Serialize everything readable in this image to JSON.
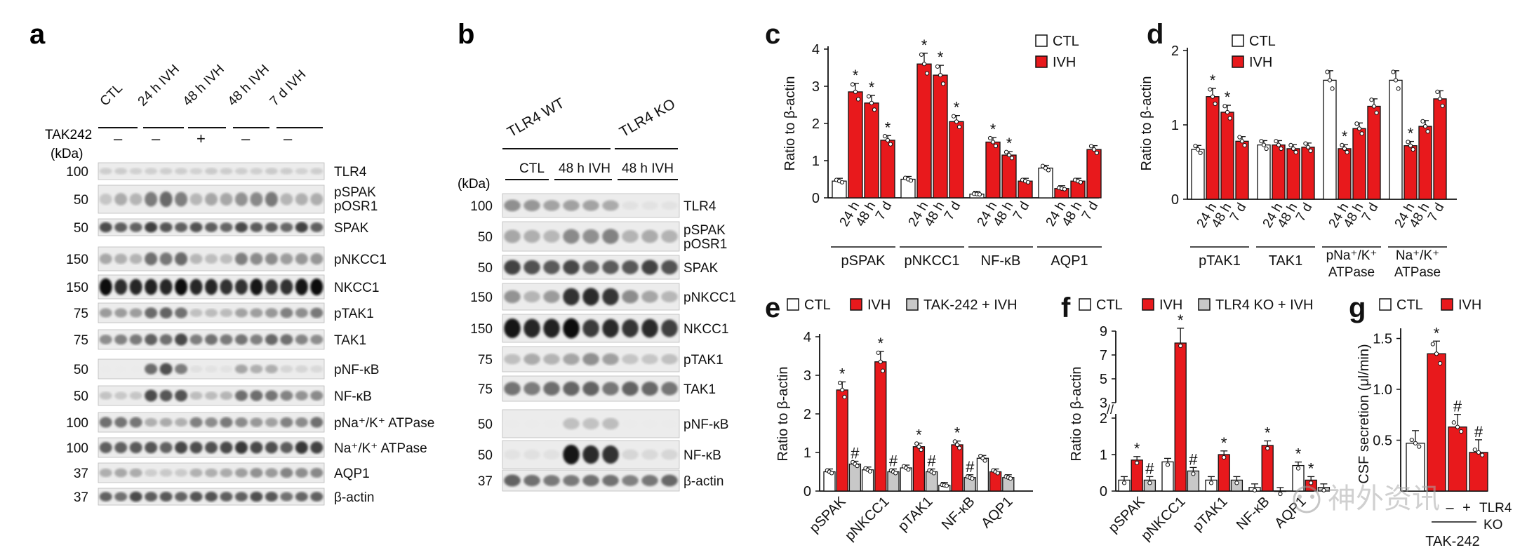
{
  "panels": {
    "a": {
      "letter": "a",
      "columns": [
        "CTL",
        "24 h IVH",
        "48 h IVH",
        "48 h IVH",
        "7 d IVH"
      ],
      "treatment_label": "TAK242",
      "treatment_marks": [
        "–",
        "–",
        "+",
        "–",
        "–"
      ],
      "kda_label": "(kDa)",
      "rows": [
        {
          "kda": "100",
          "label": "TLR4"
        },
        {
          "kda": "50",
          "label": "pSPAK / pOSR1"
        },
        {
          "kda": "50",
          "label": "SPAK"
        },
        {
          "kda": "150",
          "label": "pNKCC1"
        },
        {
          "kda": "150",
          "label": "NKCC1"
        },
        {
          "kda": "75",
          "label": "pTAK1"
        },
        {
          "kda": "75",
          "label": "TAK1"
        },
        {
          "kda": "50",
          "label": "pNF-κB"
        },
        {
          "kda": "50",
          "label": "NF-κB"
        },
        {
          "kda": "100",
          "label": "pNa⁺/K⁺ ATPase"
        },
        {
          "kda": "100",
          "label": "Na⁺/K⁺ ATPase"
        },
        {
          "kda": "37",
          "label": "AQP1"
        },
        {
          "kda": "37",
          "label": "β-actin"
        }
      ]
    },
    "b": {
      "letter": "b",
      "groups": [
        "TLR4 WT",
        "TLR4 KO"
      ],
      "subgroups": [
        "CTL",
        "48 h IVH",
        "48 h IVH"
      ],
      "kda_label": "(kDa)",
      "rows": [
        {
          "kda": "100",
          "label": "TLR4"
        },
        {
          "kda": "50",
          "label": "pSPAK / pOSR1"
        },
        {
          "kda": "50",
          "label": "SPAK"
        },
        {
          "kda": "150",
          "label": "pNKCC1"
        },
        {
          "kda": "150",
          "label": "NKCC1"
        },
        {
          "kda": "75",
          "label": "pTAK1"
        },
        {
          "kda": "75",
          "label": "TAK1"
        },
        {
          "kda": "50",
          "label": "pNF-κB"
        },
        {
          "kda": "50",
          "label": "NF-κB"
        },
        {
          "kda": "37",
          "label": "β-actin"
        }
      ]
    }
  },
  "chart_data": [
    {
      "id": "c",
      "type": "bar",
      "ylabel": "Ratio to β-actin",
      "ylim": [
        0,
        4
      ],
      "yticks": [
        0,
        1,
        2,
        3,
        4
      ],
      "legend": [
        "CTL",
        "IVH"
      ],
      "groups": [
        {
          "label": "pSPAK",
          "bars": [
            {
              "x": "",
              "s": "CTL",
              "v": 0.45
            },
            {
              "x": "24 h",
              "s": "IVH",
              "v": 2.85,
              "star": true
            },
            {
              "x": "48 h",
              "s": "IVH",
              "v": 2.55,
              "star": true
            },
            {
              "x": "7 d",
              "s": "IVH",
              "v": 1.55,
              "star": true
            }
          ]
        },
        {
          "label": "pNKCC1",
          "bars": [
            {
              "x": "",
              "s": "CTL",
              "v": 0.5
            },
            {
              "x": "24 h",
              "s": "IVH",
              "v": 3.6,
              "star": true
            },
            {
              "x": "48 h",
              "s": "IVH",
              "v": 3.3,
              "star": true
            },
            {
              "x": "7 d",
              "s": "IVH",
              "v": 2.05,
              "star": true
            }
          ]
        },
        {
          "label": "NF-κB",
          "bars": [
            {
              "x": "",
              "s": "CTL",
              "v": 0.1
            },
            {
              "x": "24 h",
              "s": "IVH",
              "v": 1.5,
              "star": true
            },
            {
              "x": "48 h",
              "s": "IVH",
              "v": 1.15,
              "star": true
            },
            {
              "x": "7 d",
              "s": "IVH",
              "v": 0.45
            }
          ]
        },
        {
          "label": "AQP1",
          "bars": [
            {
              "x": "",
              "s": "CTL",
              "v": 0.8
            },
            {
              "x": "24 h",
              "s": "IVH",
              "v": 0.25
            },
            {
              "x": "48 h",
              "s": "IVH",
              "v": 0.45
            },
            {
              "x": "7 d",
              "s": "IVH",
              "v": 1.3
            }
          ]
        }
      ]
    },
    {
      "id": "d",
      "type": "bar",
      "ylabel": "Ratio to β-actin",
      "ylim": [
        0,
        2
      ],
      "yticks": [
        0,
        1,
        2
      ],
      "legend": [
        "CTL",
        "IVH"
      ],
      "groups": [
        {
          "label": "pTAK1",
          "bars": [
            {
              "x": "",
              "s": "CTL",
              "v": 0.67
            },
            {
              "x": "24 h",
              "s": "IVH",
              "v": 1.38,
              "star": true
            },
            {
              "x": "48 h",
              "s": "IVH",
              "v": 1.17,
              "star": true
            },
            {
              "x": "7 d",
              "s": "IVH",
              "v": 0.78
            }
          ]
        },
        {
          "label": "TAK1",
          "bars": [
            {
              "x": "",
              "s": "CTL",
              "v": 0.73
            },
            {
              "x": "24 h",
              "s": "IVH",
              "v": 0.73
            },
            {
              "x": "48 h",
              "s": "IVH",
              "v": 0.68
            },
            {
              "x": "7 d",
              "s": "IVH",
              "v": 0.7
            }
          ]
        },
        {
          "label": "pNa⁺/K⁺ ATPase",
          "bars": [
            {
              "x": "",
              "s": "CTL",
              "v": 1.6
            },
            {
              "x": "24 h",
              "s": "IVH",
              "v": 0.68,
              "star": true
            },
            {
              "x": "48 h",
              "s": "IVH",
              "v": 0.95
            },
            {
              "x": "7 d",
              "s": "IVH",
              "v": 1.25
            }
          ]
        },
        {
          "label": "Na⁺/K⁺ ATPase",
          "bars": [
            {
              "x": "",
              "s": "CTL",
              "v": 1.6
            },
            {
              "x": "24 h",
              "s": "IVH",
              "v": 0.72,
              "star": true
            },
            {
              "x": "48 h",
              "s": "IVH",
              "v": 0.98
            },
            {
              "x": "7 d",
              "s": "IVH",
              "v": 1.35
            }
          ]
        }
      ]
    },
    {
      "id": "e",
      "type": "bar",
      "ylabel": "Ratio to β-actin",
      "ylim": [
        0,
        4
      ],
      "yticks": [
        0,
        1,
        2,
        3,
        4
      ],
      "legend": [
        "CTL",
        "IVH",
        "TAK-242 + IVH"
      ],
      "groups": [
        {
          "label": "pSPAK",
          "bars": [
            {
              "s": "CTL",
              "v": 0.5
            },
            {
              "s": "IVH",
              "v": 2.62,
              "star": true
            },
            {
              "s": "TAK",
              "v": 0.7,
              "hash": true
            },
            {
              "s": "CTL",
              "v": 0.55
            }
          ]
        },
        {
          "label": "pNKCC1",
          "bars": [
            {
              "s": "IVH",
              "v": 3.35,
              "star": true
            },
            {
              "s": "TAK",
              "v": 0.5,
              "hash": true
            },
            {
              "s": "CTL",
              "v": 0.6
            }
          ]
        },
        {
          "label": "pTAK1",
          "bars": [
            {
              "s": "IVH",
              "v": 1.15,
              "star": true
            },
            {
              "s": "TAK",
              "v": 0.5,
              "hash": true
            },
            {
              "s": "CTL",
              "v": 0.15
            }
          ]
        },
        {
          "label": "NF-κB",
          "bars": [
            {
              "s": "IVH",
              "v": 1.2,
              "star": true
            },
            {
              "s": "TAK",
              "v": 0.35,
              "hash": true
            },
            {
              "s": "CTL",
              "v": 0.85
            }
          ]
        },
        {
          "label": "AQP1",
          "bars": [
            {
              "s": "IVH",
              "v": 0.5
            },
            {
              "s": "TAK",
              "v": 0.35
            }
          ]
        }
      ]
    },
    {
      "id": "f",
      "type": "bar",
      "ylabel": "Ratio to β-actin",
      "yticks_lower": [
        0,
        1,
        2
      ],
      "yticks_upper": [
        3,
        5,
        7,
        9
      ],
      "legend": [
        "CTL",
        "IVH",
        "TLR4 KO + IVH"
      ],
      "groups": [
        {
          "label": "pSPAK",
          "bars": [
            {
              "s": "CTL",
              "v": 0.3
            },
            {
              "s": "IVH",
              "v": 0.85,
              "star": true
            },
            {
              "s": "KO",
              "v": 0.3,
              "hash": true
            }
          ]
        },
        {
          "label": "pNKCC1",
          "bars": [
            {
              "s": "CTL",
              "v": 0.8
            },
            {
              "s": "IVH",
              "v": 8.0,
              "star": true
            },
            {
              "s": "KO",
              "v": 0.55,
              "hash": true
            }
          ]
        },
        {
          "label": "pTAK1",
          "bars": [
            {
              "s": "CTL",
              "v": 0.3
            },
            {
              "s": "IVH",
              "v": 1.0,
              "star": true
            },
            {
              "s": "KO",
              "v": 0.3
            }
          ]
        },
        {
          "label": "NF-κB",
          "bars": [
            {
              "s": "CTL",
              "v": 0.1
            },
            {
              "s": "IVH",
              "v": 1.25,
              "star": true
            },
            {
              "s": "KO",
              "v": 0.0
            }
          ]
        },
        {
          "label": "AQP1",
          "bars": [
            {
              "s": "CTL",
              "v": 0.7,
              "star": true
            },
            {
              "s": "IVH",
              "v": 0.3,
              "star": true
            },
            {
              "s": "KO",
              "v": 0.1
            }
          ]
        }
      ]
    },
    {
      "id": "g",
      "type": "bar",
      "ylabel": "CSF secretion (μl/min)",
      "ylim": [
        0,
        1.6
      ],
      "yticks": [
        0.5,
        1.0,
        1.5
      ],
      "legend": [
        "CTL",
        "IVH"
      ],
      "bars": [
        {
          "s": "CTL",
          "v": 0.47
        },
        {
          "s": "IVH",
          "v": 1.35,
          "star": true
        },
        {
          "s": "IVH",
          "v": 0.63,
          "hash": true
        },
        {
          "s": "IVH",
          "v": 0.38,
          "hash": true
        }
      ],
      "xlabels": [
        "–",
        "+",
        "TLR4 KO"
      ],
      "xgroup": "TAK-242"
    }
  ],
  "watermark": "神外资讯",
  "colors": {
    "ivh": "#e8191c",
    "ctl": "#ffffff",
    "gray": "#c8c8c8"
  }
}
